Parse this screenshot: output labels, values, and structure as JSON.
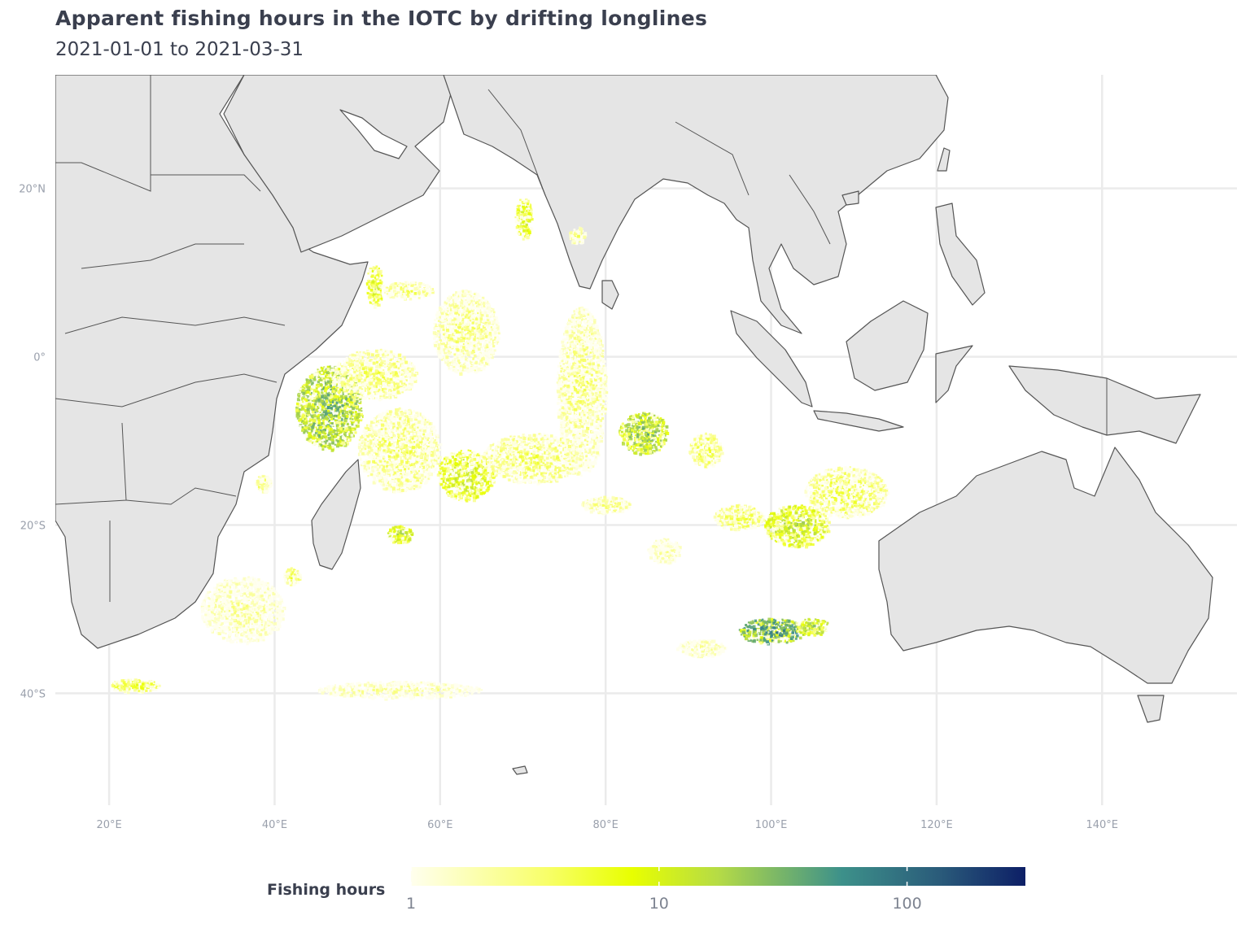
{
  "title": "Apparent fishing hours in the IOTC by drifting longlines",
  "subtitle": "2021-01-01 to 2021-03-31",
  "map": {
    "lon_range": [
      13.5,
      156.3
    ],
    "lat_range": [
      -53.3,
      33.5
    ],
    "x_ticks": [
      {
        "lon": 20,
        "label": "20°E"
      },
      {
        "lon": 40,
        "label": "40°E"
      },
      {
        "lon": 60,
        "label": "60°E"
      },
      {
        "lon": 80,
        "label": "80°E"
      },
      {
        "lon": 100,
        "label": "100°E"
      },
      {
        "lon": 120,
        "label": "120°E"
      },
      {
        "lon": 140,
        "label": "140°E"
      }
    ],
    "y_ticks": [
      {
        "lat": 20,
        "label": "20°N"
      },
      {
        "lat": 0,
        "label": "0°"
      },
      {
        "lat": -20,
        "label": "20°S"
      },
      {
        "lat": -40,
        "label": "40°S"
      }
    ],
    "land_color": "#e5e5e5",
    "border_color": "#555555",
    "grid_color": "#ebebeb"
  },
  "legend": {
    "title": "Fishing hours",
    "scale": "log",
    "range": [
      1,
      300
    ],
    "ticks": [
      {
        "value": 1,
        "label": "1"
      },
      {
        "value": 10,
        "label": "10"
      },
      {
        "value": 100,
        "label": "100"
      }
    ],
    "colors": [
      "#ffffe8",
      "#f7ff2e",
      "#e6ff00",
      "#a9d64b",
      "#3d918a",
      "#2a5b7a",
      "#0d1f66"
    ]
  },
  "chart_data": {
    "type": "heatmap",
    "value_name": "Fishing hours",
    "hotspots": [
      {
        "lon": 46.5,
        "lat": -6.0,
        "rlon": 4.0,
        "rlat": 5.0,
        "hours": 40
      },
      {
        "lon": 52.0,
        "lat": 8.5,
        "rlon": 1.0,
        "rlat": 2.5,
        "hours": 12
      },
      {
        "lon": 56.0,
        "lat": 8.0,
        "rlon": 3.0,
        "rlat": 1.0,
        "hours": 5
      },
      {
        "lon": 63.0,
        "lat": 3.0,
        "rlon": 4.0,
        "rlat": 5.0,
        "hours": 4
      },
      {
        "lon": 52.0,
        "lat": -2.0,
        "rlon": 5.0,
        "rlat": 3.0,
        "hours": 5
      },
      {
        "lon": 55.0,
        "lat": -11.0,
        "rlon": 5.0,
        "rlat": 5.0,
        "hours": 5
      },
      {
        "lon": 63.0,
        "lat": -14.0,
        "rlon": 3.5,
        "rlat": 3.0,
        "hours": 14
      },
      {
        "lon": 70.0,
        "lat": 16.5,
        "rlon": 1.0,
        "rlat": 2.5,
        "hours": 12
      },
      {
        "lon": 77.0,
        "lat": -4.0,
        "rlon": 3.0,
        "rlat": 10.0,
        "hours": 4
      },
      {
        "lon": 71.0,
        "lat": -12.0,
        "rlon": 6.0,
        "rlat": 3.0,
        "hours": 5
      },
      {
        "lon": 84.5,
        "lat": -9.0,
        "rlon": 3.0,
        "rlat": 2.5,
        "hours": 35
      },
      {
        "lon": 92.0,
        "lat": -11.0,
        "rlon": 2.0,
        "rlat": 2.0,
        "hours": 6
      },
      {
        "lon": 80.0,
        "lat": -17.5,
        "rlon": 3.0,
        "rlat": 1.0,
        "hours": 4
      },
      {
        "lon": 103.0,
        "lat": -20.0,
        "rlon": 4.0,
        "rlat": 2.5,
        "hours": 20
      },
      {
        "lon": 109.0,
        "lat": -16.0,
        "rlon": 5.0,
        "rlat": 3.0,
        "hours": 6
      },
      {
        "lon": 100.0,
        "lat": -32.5,
        "rlon": 4.0,
        "rlat": 1.5,
        "hours": 80
      },
      {
        "lon": 105.0,
        "lat": -32.0,
        "rlon": 2.0,
        "rlat": 1.0,
        "hours": 25
      },
      {
        "lon": 55.0,
        "lat": -21.0,
        "rlon": 1.5,
        "rlat": 1.0,
        "hours": 20
      },
      {
        "lon": 42.0,
        "lat": -26.0,
        "rlon": 1.0,
        "rlat": 1.0,
        "hours": 6
      },
      {
        "lon": 23.0,
        "lat": -39.0,
        "rlon": 3.0,
        "rlat": 0.8,
        "hours": 8
      },
      {
        "lon": 55.0,
        "lat": -39.5,
        "rlon": 10.0,
        "rlat": 1.0,
        "hours": 3
      },
      {
        "lon": 36.0,
        "lat": -30.0,
        "rlon": 5.0,
        "rlat": 4.0,
        "hours": 3
      },
      {
        "lon": 87.0,
        "lat": -23.0,
        "rlon": 2.0,
        "rlat": 1.5,
        "hours": 3
      },
      {
        "lon": 91.5,
        "lat": -34.5,
        "rlon": 3.0,
        "rlat": 1.0,
        "hours": 3
      },
      {
        "lon": 96.0,
        "lat": -19.0,
        "rlon": 3.0,
        "rlat": 1.5,
        "hours": 6
      },
      {
        "lon": 76.5,
        "lat": 14.5,
        "rlon": 1.0,
        "rlat": 1.0,
        "hours": 4
      },
      {
        "lon": 38.5,
        "lat": -15.0,
        "rlon": 1.0,
        "rlat": 1.0,
        "hours": 5
      }
    ]
  }
}
